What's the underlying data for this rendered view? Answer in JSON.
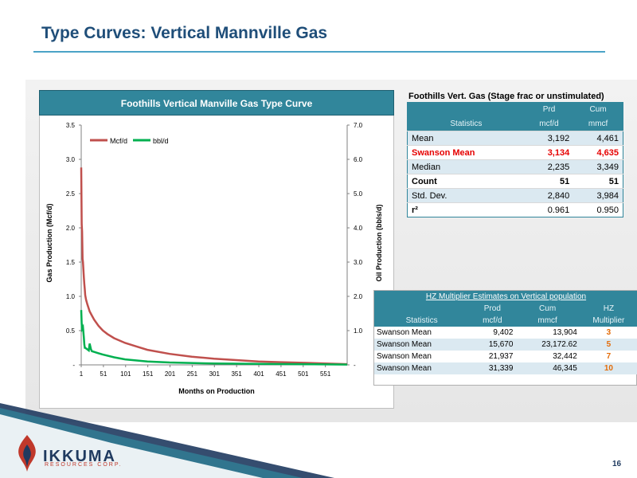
{
  "slide": {
    "title": "Type Curves: Vertical Mannville Gas",
    "page_number": "16"
  },
  "logo": {
    "name": "IKKUMA",
    "tagline": "RESOURCES CORP."
  },
  "colors": {
    "accent": "#31869b",
    "gas": "#c0504d",
    "oil": "#00b050",
    "highlight_red": "#e60000",
    "multiplier": "#e36c09"
  },
  "chart_data": {
    "type": "line",
    "title": "Foothills Vertical Manville Gas Type Curve",
    "xlabel": "Months on Production",
    "ylabel": "Gas Production (Mcf/d)",
    "y2label": "Oil Production (bbls/d)",
    "xlim": [
      1,
      600
    ],
    "ylim": [
      0,
      3.5
    ],
    "y2lim": [
      0,
      7.0
    ],
    "x_ticks": [
      "1",
      "51",
      "101",
      "151",
      "201",
      "251",
      "301",
      "351",
      "401",
      "451",
      "501",
      "551"
    ],
    "y_ticks": [
      "-",
      "0.5",
      "1.0",
      "1.5",
      "2.0",
      "2.5",
      "3.0",
      "3.5"
    ],
    "y2_ticks": [
      "-",
      "1.0",
      "2.0",
      "3.0",
      "4.0",
      "5.0",
      "6.0",
      "7.0"
    ],
    "legend_position": "top-left",
    "series": [
      {
        "name": "Mcf/d",
        "axis": "left",
        "x": [
          1,
          2,
          3,
          4,
          5,
          6,
          7,
          8,
          9,
          10,
          12,
          15,
          20,
          25,
          30,
          40,
          50,
          60,
          75,
          100,
          125,
          150,
          200,
          250,
          300,
          350,
          400,
          450,
          500,
          550,
          600
        ],
        "y": [
          2.88,
          2.05,
          1.95,
          1.55,
          1.5,
          1.38,
          1.28,
          1.18,
          1.1,
          1.02,
          0.95,
          0.88,
          0.78,
          0.72,
          0.66,
          0.57,
          0.5,
          0.45,
          0.39,
          0.32,
          0.27,
          0.22,
          0.16,
          0.12,
          0.09,
          0.07,
          0.05,
          0.04,
          0.03,
          0.02,
          0.01
        ]
      },
      {
        "name": "bbl/d",
        "axis": "right",
        "x": [
          1,
          2,
          3,
          5,
          7,
          8,
          9,
          10,
          12,
          15,
          18,
          20,
          23,
          25,
          30,
          40,
          50,
          75,
          100,
          150,
          200,
          300,
          400,
          500,
          600
        ],
        "y": [
          1.6,
          1.2,
          1.05,
          1.1,
          0.8,
          0.6,
          0.5,
          0.5,
          0.48,
          0.45,
          0.42,
          0.62,
          0.45,
          0.4,
          0.38,
          0.34,
          0.3,
          0.22,
          0.16,
          0.1,
          0.07,
          0.04,
          0.03,
          0.02,
          0.01
        ]
      }
    ]
  },
  "stats_table": {
    "title": "Foothills Vert. Gas (Stage frac or unstimulated)",
    "headers": {
      "col1": "Statistics",
      "col2_top": "Prd",
      "col2": "mcf/d",
      "col3_top": "Cum",
      "col3": "mmcf"
    },
    "rows": [
      {
        "label": "Mean",
        "prd": "3,192",
        "cum": "4,461"
      },
      {
        "label": "Swanson Mean",
        "prd": "3,134",
        "cum": "4,635"
      },
      {
        "label": "Median",
        "prd": "2,235",
        "cum": "3,349"
      },
      {
        "label": "Count",
        "prd": "51",
        "cum": "51"
      },
      {
        "label": "Std. Dev.",
        "prd": "2,840",
        "cum": "3,984"
      },
      {
        "label": "r²",
        "prd": "0.961",
        "cum": "0.950"
      }
    ]
  },
  "hz_table": {
    "title": "HZ Multiplier Estimates on Vertical population",
    "headers": {
      "col1": "Statistics",
      "col2_top": "Prod",
      "col2": "mcf/d",
      "col3_top": "Cum",
      "col3": "mmcf",
      "col4_top": "HZ",
      "col4": "Multiplier"
    },
    "rows": [
      {
        "label": "Swanson Mean",
        "prod": "9,402",
        "cum": "13,904",
        "mult": "3"
      },
      {
        "label": "Swanson Mean",
        "prod": "15,670",
        "cum": "23,172.62",
        "mult": "5"
      },
      {
        "label": "Swanson Mean",
        "prod": "21,937",
        "cum": "32,442",
        "mult": "7"
      },
      {
        "label": "Swanson Mean",
        "prod": "31,339",
        "cum": "46,345",
        "mult": "10"
      }
    ]
  }
}
